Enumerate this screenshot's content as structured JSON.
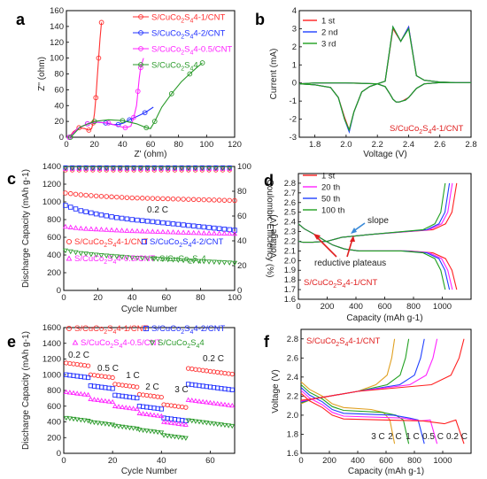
{
  "chart_data": [
    {
      "panel": "a",
      "type": "line",
      "xlabel": "Z' (ohm)",
      "ylabel": "Z'' (ohm)",
      "xlim": [
        0,
        120
      ],
      "ylim": [
        0,
        160
      ],
      "xticks": [
        0,
        20,
        40,
        60,
        80,
        100,
        120
      ],
      "yticks": [
        0,
        20,
        40,
        60,
        80,
        100,
        120,
        140,
        160
      ],
      "legend_position": "top-right",
      "series": [
        {
          "name": "S/CuCo2S4-1/CNT",
          "color": "#ff3030",
          "x": [
            2,
            5,
            9,
            13,
            16,
            18,
            19,
            20,
            21,
            22,
            23,
            24,
            25
          ],
          "y": [
            0,
            7,
            12,
            11,
            9,
            11,
            18,
            30,
            50,
            75,
            100,
            125,
            145
          ]
        },
        {
          "name": "S/CuCo2S4-2/CNT",
          "color": "#2030ff",
          "x": [
            2,
            8,
            15,
            22,
            28,
            33,
            37,
            41,
            45,
            50,
            56,
            62
          ],
          "y": [
            0,
            11,
            17,
            19,
            18,
            16,
            16,
            18,
            22,
            26,
            31,
            38
          ]
        },
        {
          "name": "S/CuCo2S4-0.5/CNT",
          "color": "#ff22ff",
          "x": [
            2,
            8,
            15,
            22,
            30,
            37,
            42,
            46,
            48,
            50,
            51,
            52,
            53,
            55
          ],
          "y": [
            0,
            11,
            17,
            19,
            18,
            14,
            12,
            14,
            25,
            40,
            58,
            75,
            88,
            100
          ]
        },
        {
          "name": "S/CuCo2S4",
          "color": "#2a9a2a",
          "x": [
            3,
            10,
            20,
            30,
            40,
            50,
            57,
            60,
            63,
            68,
            75,
            82,
            88,
            93,
            97
          ],
          "y": [
            0,
            13,
            20,
            22,
            21,
            17,
            12,
            11,
            20,
            38,
            55,
            70,
            80,
            88,
            94
          ]
        }
      ]
    },
    {
      "panel": "b",
      "type": "line",
      "xlabel": "Voltage (V)",
      "ylabel": "Current (mA)",
      "xlim": [
        1.7,
        2.8
      ],
      "ylim": [
        -3,
        4
      ],
      "xticks": [
        1.8,
        2.0,
        2.2,
        2.4,
        2.6,
        2.8
      ],
      "yticks": [
        -3,
        -2,
        -1,
        0,
        1,
        2,
        3,
        4
      ],
      "annotation": "S/CuCo2S4-1/CNT",
      "legend_position": "top-left",
      "series": [
        {
          "name": "1 st",
          "color": "#ff2020",
          "x": [
            1.7,
            1.8,
            1.9,
            1.95,
            1.99,
            2.02,
            2.05,
            2.1,
            2.15,
            2.2,
            2.25,
            2.3,
            2.35,
            2.4,
            2.45,
            2.5,
            2.6,
            2.7,
            2.8,
            2.7,
            2.6,
            2.5,
            2.45,
            2.4,
            2.38,
            2.36,
            2.34,
            2.32,
            2.3,
            2.28,
            2.25,
            2.2,
            2.1,
            2.0,
            1.9,
            1.8,
            1.7
          ],
          "y": [
            -0.05,
            -0.1,
            -0.25,
            -0.8,
            -1.9,
            -2.6,
            -1.6,
            -0.5,
            -0.2,
            -0.05,
            0.1,
            3.0,
            2.3,
            3.1,
            0.4,
            0.15,
            0.05,
            0.02,
            0.02,
            0.02,
            0.02,
            -0.05,
            -0.3,
            -0.8,
            -0.9,
            -1.0,
            -1.05,
            -1.05,
            -0.9,
            -0.6,
            -0.2,
            -0.05,
            -0.02,
            0.0,
            0.0,
            0.0,
            -0.05
          ]
        },
        {
          "name": "2 nd",
          "color": "#2040ff",
          "x": [
            1.7,
            1.8,
            1.9,
            1.95,
            1.99,
            2.02,
            2.05,
            2.1,
            2.15,
            2.2,
            2.25,
            2.3,
            2.35,
            2.4,
            2.45,
            2.5,
            2.6,
            2.7,
            2.8,
            2.7,
            2.6,
            2.5,
            2.45,
            2.4,
            2.38,
            2.36,
            2.34,
            2.32,
            2.3,
            2.28,
            2.25,
            2.2,
            2.1,
            2.0,
            1.9,
            1.8,
            1.7
          ],
          "y": [
            -0.05,
            -0.1,
            -0.25,
            -0.8,
            -2.0,
            -2.7,
            -1.6,
            -0.5,
            -0.2,
            -0.05,
            0.1,
            3.1,
            2.3,
            3.1,
            0.4,
            0.15,
            0.05,
            0.02,
            0.02,
            0.02,
            0.02,
            -0.05,
            -0.3,
            -0.8,
            -0.95,
            -1.0,
            -1.05,
            -1.05,
            -0.9,
            -0.6,
            -0.2,
            -0.05,
            -0.02,
            0.0,
            0.0,
            0.0,
            -0.05
          ]
        },
        {
          "name": "3 rd",
          "color": "#20a020",
          "x": [
            1.7,
            1.8,
            1.9,
            1.95,
            1.99,
            2.02,
            2.05,
            2.1,
            2.15,
            2.2,
            2.25,
            2.3,
            2.35,
            2.4,
            2.45,
            2.5,
            2.6,
            2.7,
            2.8,
            2.7,
            2.6,
            2.5,
            2.45,
            2.4,
            2.38,
            2.36,
            2.34,
            2.32,
            2.3,
            2.28,
            2.25,
            2.2,
            2.1,
            2.0,
            1.9,
            1.8,
            1.7
          ],
          "y": [
            -0.05,
            -0.1,
            -0.25,
            -0.8,
            -2.0,
            -2.6,
            -1.6,
            -0.5,
            -0.2,
            -0.05,
            0.1,
            3.1,
            2.3,
            3.0,
            0.4,
            0.15,
            0.05,
            0.02,
            0.02,
            0.02,
            0.02,
            -0.05,
            -0.3,
            -0.8,
            -0.95,
            -1.0,
            -1.05,
            -1.05,
            -0.9,
            -0.6,
            -0.2,
            -0.05,
            -0.02,
            0.0,
            0.0,
            0.0,
            -0.05
          ]
        }
      ]
    },
    {
      "panel": "c",
      "type": "scatter",
      "xlabel": "Cycle Number",
      "ylabel": "Discharge Capacity (mAh g-1)",
      "y2label": "Coulombic Efficiency (%)",
      "xlim": [
        0,
        100
      ],
      "ylim": [
        0,
        1400
      ],
      "y2lim": [
        0,
        100
      ],
      "xticks": [
        0,
        20,
        40,
        60,
        80,
        100
      ],
      "yticks": [
        0,
        200,
        400,
        600,
        800,
        1000,
        1200,
        1400
      ],
      "y2ticks": [
        0,
        20,
        40,
        60,
        80,
        100
      ],
      "annotation": "0.2 C",
      "legend_position": "bottom",
      "series": [
        {
          "name": "S/CuCo2S4-1/CNT",
          "color": "#ff3030",
          "marker": "circle",
          "x": [
            1,
            10,
            20,
            30,
            40,
            50,
            60,
            70,
            80,
            90,
            100
          ],
          "y": [
            1100,
            1080,
            1065,
            1055,
            1045,
            1040,
            1035,
            1030,
            1025,
            1020,
            1015
          ]
        },
        {
          "name": "S/CuCo2S4-2/CNT",
          "color": "#2030ff",
          "marker": "square",
          "x": [
            1,
            10,
            20,
            30,
            40,
            50,
            60,
            70,
            80,
            90,
            100
          ],
          "y": [
            960,
            900,
            860,
            825,
            800,
            780,
            760,
            740,
            720,
            700,
            680
          ]
        },
        {
          "name": "S/CuCo2S4-0.5/CNT",
          "color": "#ff22ff",
          "marker": "triangle-up",
          "x": [
            1,
            10,
            20,
            30,
            40,
            50,
            60,
            70,
            80,
            90,
            100
          ],
          "y": [
            720,
            700,
            690,
            680,
            672,
            666,
            660,
            654,
            648,
            644,
            640
          ]
        },
        {
          "name": "S/CuCo2S4",
          "color": "#2a9a2a",
          "marker": "triangle-down",
          "x": [
            1,
            10,
            20,
            30,
            40,
            50,
            60,
            70,
            80,
            90,
            100
          ],
          "y": [
            450,
            420,
            400,
            385,
            370,
            360,
            350,
            340,
            330,
            320,
            310
          ]
        }
      ],
      "efficiency": [
        {
          "color": "#ff3030",
          "marker": "circle",
          "y": 97
        },
        {
          "color": "#2030ff",
          "marker": "square",
          "y": 99
        },
        {
          "color": "#ff22ff",
          "marker": "triangle-up",
          "y": 98
        },
        {
          "color": "#2a9a2a",
          "marker": "triangle-down",
          "y": 98.5
        }
      ]
    },
    {
      "panel": "d",
      "type": "line",
      "xlabel": "Capacity (mAh g-1)",
      "ylabel": "Voltage (V)",
      "xlim": [
        0,
        1200
      ],
      "ylim": [
        1.6,
        2.9
      ],
      "xticks": [
        0,
        200,
        400,
        600,
        800,
        1000
      ],
      "yticks": [
        1.6,
        1.7,
        1.8,
        1.9,
        2.0,
        2.1,
        2.2,
        2.3,
        2.4,
        2.5,
        2.6,
        2.7,
        2.8
      ],
      "annotations": [
        "slope",
        "reductive plateaus"
      ],
      "caption": "S/CuCo2S4-1/CNT",
      "legend_position": "top-left",
      "series": [
        {
          "name": "1 st",
          "color": "#ff2020",
          "capacity": 1100
        },
        {
          "name": "20 th",
          "color": "#ff22ff",
          "capacity": 1070
        },
        {
          "name": "50 th",
          "color": "#2040ff",
          "capacity": 1050
        },
        {
          "name": "100 th",
          "color": "#20a020",
          "capacity": 1020
        }
      ]
    },
    {
      "panel": "e",
      "type": "scatter",
      "xlabel": "Cycle Number",
      "ylabel": "Discharge Capacity (mAh g-1)",
      "xlim": [
        0,
        70
      ],
      "ylim": [
        0,
        1600
      ],
      "xticks": [
        0,
        20,
        40,
        60
      ],
      "yticks": [
        0,
        200,
        400,
        600,
        800,
        1000,
        1200,
        1400,
        1600
      ],
      "rate_labels": [
        "0.2 C",
        "0.5 C",
        "1 C",
        "2 C",
        "3 C",
        "0.2 C"
      ],
      "legend_position": "top",
      "series": [
        {
          "name": "S/CuCo2S4-1/CNT",
          "color": "#ff3030",
          "marker": "circle",
          "segments": [
            1150,
            1000,
            880,
            750,
            620,
            1080
          ]
        },
        {
          "name": "S/CuCo2S4-2/CNT",
          "color": "#2030ff",
          "marker": "square",
          "segments": [
            1000,
            860,
            740,
            600,
            450,
            880
          ]
        },
        {
          "name": "S/CuCo2S4-0.5/CNT",
          "color": "#ff22ff",
          "marker": "triangle-up",
          "segments": [
            780,
            690,
            600,
            510,
            400,
            680
          ]
        },
        {
          "name": "S/CuCo2S4",
          "color": "#2a9a2a",
          "marker": "triangle-down",
          "segments": [
            450,
            400,
            350,
            300,
            230,
            420
          ]
        }
      ]
    },
    {
      "panel": "f",
      "type": "line",
      "xlabel": "Capacity (mAh g-1)",
      "ylabel": "Voltage (V)",
      "xlim": [
        0,
        1200
      ],
      "ylim": [
        1.6,
        2.9
      ],
      "xticks": [
        0,
        200,
        400,
        600,
        800,
        1000
      ],
      "yticks": [
        1.6,
        1.8,
        2.0,
        2.2,
        2.4,
        2.6,
        2.8
      ],
      "caption": "S/CuCo2S4-1/CNT",
      "rate_labels": [
        "3 C",
        "2 C",
        "1 C",
        "0.5 C",
        "0.2 C"
      ],
      "series": [
        {
          "name": "3 C",
          "color": "#e0a020",
          "capacity": 660
        },
        {
          "name": "2 C",
          "color": "#20a020",
          "capacity": 760
        },
        {
          "name": "1 C",
          "color": "#2040ff",
          "capacity": 870
        },
        {
          "name": "0.5 C",
          "color": "#ff22ff",
          "capacity": 960
        },
        {
          "name": "0.2 C",
          "color": "#ff2020",
          "capacity": 1150
        }
      ]
    }
  ]
}
